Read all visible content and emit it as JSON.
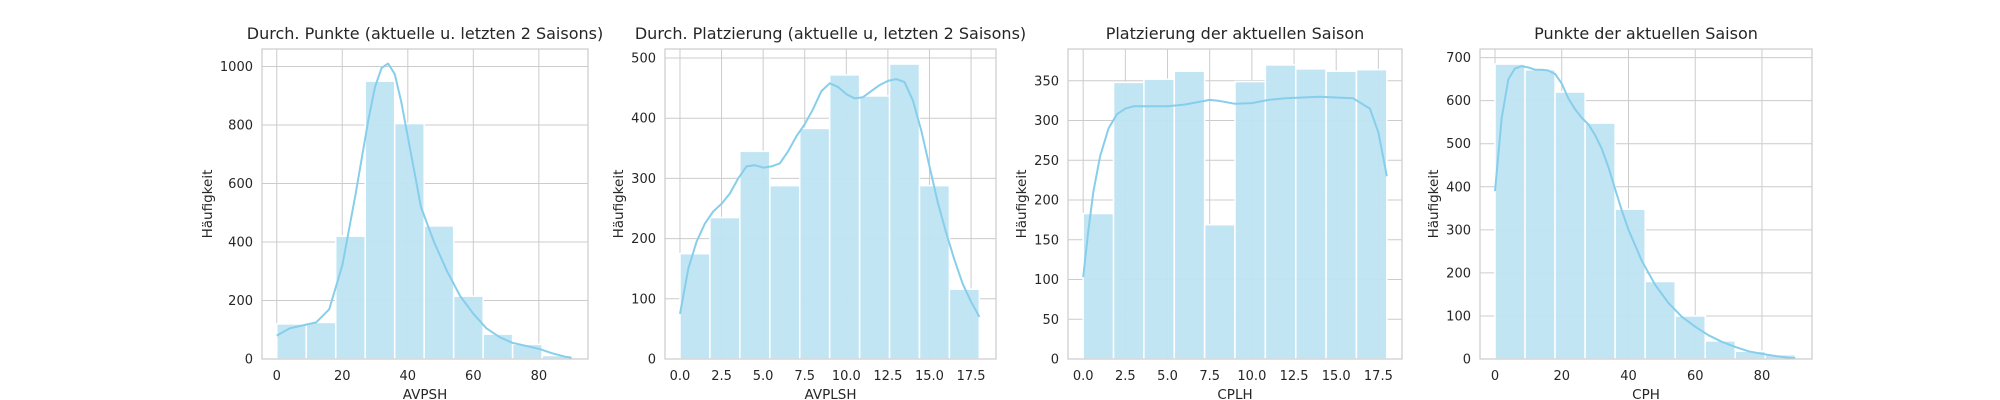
{
  "style": {
    "bar_fill": "#bfe4f3",
    "bar_edge": "#ffffff",
    "kde_color": "#87ceeb",
    "grid_color": "#cccccc",
    "frame_color": "#cccccc",
    "text_color": "#262626"
  },
  "chart_data": [
    {
      "type": "bar",
      "subtype": "histogram_with_kde",
      "title": "Durch. Punkte (aktuelle u. letzten 2 Saisons)",
      "xlabel": "AVPSH",
      "ylabel": "Häufigkeit",
      "grid": true,
      "xlim": [
        -4.5,
        95
      ],
      "ylim": [
        0,
        1060
      ],
      "xticks": [
        0,
        20,
        40,
        60,
        80
      ],
      "xtick_labels": [
        "0",
        "20",
        "40",
        "60",
        "80"
      ],
      "yticks": [
        0,
        200,
        400,
        600,
        800,
        1000
      ],
      "ytick_labels": [
        "0",
        "200",
        "400",
        "600",
        "800",
        "1000"
      ],
      "bin_edges": [
        0,
        9,
        18,
        27,
        36,
        45,
        54,
        63,
        72,
        81,
        90
      ],
      "values": [
        120,
        125,
        420,
        950,
        805,
        455,
        215,
        85,
        50,
        12
      ],
      "kde": {
        "x": [
          0,
          4,
          8,
          12,
          16,
          20,
          24,
          28,
          30,
          32,
          34,
          36,
          38,
          40,
          42,
          44,
          48,
          52,
          56,
          60,
          64,
          68,
          72,
          76,
          80,
          84,
          88,
          90
        ],
        "y": [
          80,
          105,
          115,
          125,
          170,
          320,
          560,
          820,
          930,
          995,
          1010,
          975,
          880,
          760,
          640,
          520,
          400,
          300,
          215,
          155,
          105,
          75,
          55,
          45,
          35,
          20,
          8,
          4
        ]
      }
    },
    {
      "type": "bar",
      "subtype": "histogram_with_kde",
      "title": "Durch. Platzierung (aktuelle u, letzten 2 Saisons)",
      "xlabel": "AVPLSH",
      "ylabel": "Häufigkeit",
      "grid": true,
      "xlim": [
        -0.9,
        19.0
      ],
      "ylim": [
        0,
        515
      ],
      "xticks": [
        0.0,
        2.5,
        5.0,
        7.5,
        10.0,
        12.5,
        15.0,
        17.5
      ],
      "xtick_labels": [
        "0.0",
        "2.5",
        "5.0",
        "7.5",
        "10.0",
        "12.5",
        "15.0",
        "17.5"
      ],
      "yticks": [
        0,
        100,
        200,
        300,
        400,
        500
      ],
      "ytick_labels": [
        "0",
        "100",
        "200",
        "300",
        "400",
        "500"
      ],
      "bin_edges": [
        0,
        1.8,
        3.6,
        5.4,
        7.2,
        9.0,
        10.8,
        12.6,
        14.4,
        16.2,
        18.0
      ],
      "values": [
        175,
        235,
        345,
        288,
        383,
        472,
        437,
        490,
        288,
        116
      ],
      "kde": {
        "x": [
          0,
          0.5,
          1,
          1.5,
          2,
          2.5,
          3,
          3.5,
          4,
          4.5,
          5,
          5.5,
          6,
          6.5,
          7,
          7.5,
          8,
          8.5,
          9,
          9.5,
          10,
          10.5,
          11,
          11.5,
          12,
          12.5,
          13,
          13.5,
          14,
          14.5,
          15,
          15.5,
          16,
          16.5,
          17,
          17.5,
          18
        ],
        "y": [
          75,
          150,
          195,
          225,
          245,
          258,
          275,
          300,
          320,
          322,
          318,
          320,
          325,
          345,
          370,
          390,
          415,
          445,
          458,
          452,
          440,
          433,
          435,
          445,
          455,
          462,
          465,
          460,
          430,
          380,
          320,
          260,
          210,
          165,
          125,
          95,
          70
        ]
      }
    },
    {
      "type": "bar",
      "subtype": "histogram_with_kde",
      "title": "Platzierung der aktuellen Saison",
      "xlabel": "CPLH",
      "ylabel": "Häufigkeit",
      "grid": true,
      "xlim": [
        -0.9,
        18.9
      ],
      "ylim": [
        0,
        390
      ],
      "xticks": [
        0.0,
        2.5,
        5.0,
        7.5,
        10.0,
        12.5,
        15.0,
        17.5
      ],
      "xtick_labels": [
        "0.0",
        "2.5",
        "5.0",
        "7.5",
        "10.0",
        "12.5",
        "15.0",
        "17.5"
      ],
      "yticks": [
        0,
        50,
        100,
        150,
        200,
        250,
        300,
        350
      ],
      "ytick_labels": [
        "0",
        "50",
        "100",
        "150",
        "200",
        "250",
        "300",
        "350"
      ],
      "bin_edges": [
        0,
        1.8,
        3.6,
        5.4,
        7.2,
        9.0,
        10.8,
        12.6,
        14.4,
        16.2,
        18.0
      ],
      "values": [
        183,
        348,
        352,
        362,
        169,
        349,
        370,
        365,
        362,
        364
      ],
      "kde": {
        "x": [
          0,
          0.3,
          0.6,
          1,
          1.5,
          2,
          2.5,
          3,
          4,
          5,
          6,
          7,
          7.5,
          8,
          9,
          10,
          11,
          12,
          13,
          14,
          15,
          16,
          17,
          17.5,
          18
        ],
        "y": [
          103,
          160,
          210,
          255,
          290,
          308,
          315,
          318,
          318,
          318,
          320,
          324,
          326,
          325,
          321,
          322,
          326,
          328,
          329,
          330,
          329,
          328,
          315,
          285,
          230
        ]
      }
    },
    {
      "type": "bar",
      "subtype": "histogram_with_kde",
      "title": "Punkte der aktuellen Saison",
      "xlabel": "CPH",
      "ylabel": "Häufigkeit",
      "grid": true,
      "xlim": [
        -4.5,
        95
      ],
      "ylim": [
        0,
        720
      ],
      "xticks": [
        0,
        20,
        40,
        60,
        80
      ],
      "xtick_labels": [
        "0",
        "20",
        "40",
        "60",
        "80"
      ],
      "yticks": [
        0,
        100,
        200,
        300,
        400,
        500,
        600,
        700
      ],
      "ytick_labels": [
        "0",
        "100",
        "200",
        "300",
        "400",
        "500",
        "600",
        "700"
      ],
      "bin_edges": [
        0,
        9,
        18,
        27,
        36,
        45,
        54,
        63,
        72,
        81,
        90
      ],
      "values": [
        685,
        672,
        620,
        548,
        348,
        180,
        100,
        42,
        18,
        10
      ],
      "kde": {
        "x": [
          0,
          2,
          4,
          6,
          8,
          10,
          12,
          14,
          16,
          18,
          20,
          22,
          24,
          26,
          28,
          30,
          32,
          34,
          36,
          38,
          40,
          44,
          48,
          52,
          56,
          60,
          64,
          68,
          72,
          76,
          80,
          84,
          88,
          90
        ],
        "y": [
          390,
          560,
          650,
          675,
          680,
          677,
          672,
          672,
          670,
          662,
          640,
          605,
          580,
          560,
          545,
          520,
          488,
          445,
          395,
          345,
          300,
          228,
          172,
          130,
          98,
          75,
          55,
          40,
          28,
          18,
          12,
          7,
          3,
          2
        ]
      }
    }
  ]
}
